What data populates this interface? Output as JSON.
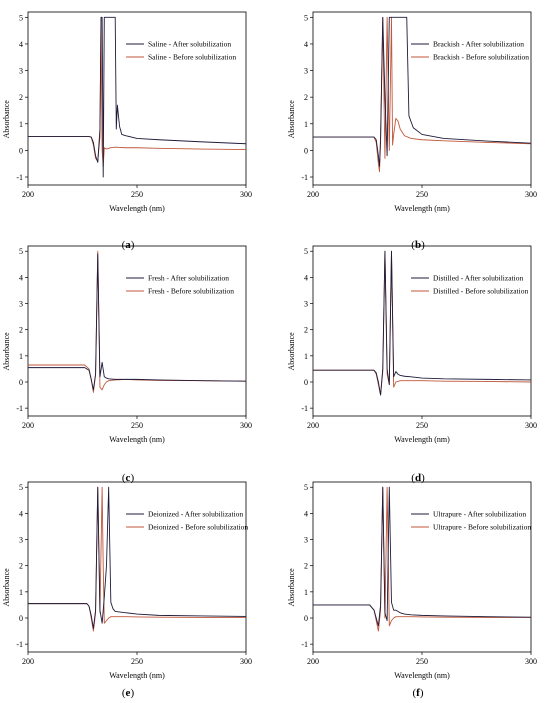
{
  "colors": {
    "after": "#1f1b3b",
    "before": "#c0573a",
    "axis": "#000000"
  },
  "chart_data": [
    {
      "type": "line",
      "panel_label": "(a)",
      "panel_letter": "a",
      "xlabel": "Wavelength (nm)",
      "ylabel": "Absorbance",
      "xlim": [
        200,
        300
      ],
      "ylim": [
        -1.3,
        5.2
      ],
      "xticks": [
        200,
        250,
        300
      ],
      "yticks": [
        -1,
        0,
        1,
        2,
        3,
        4,
        5
      ],
      "legend_position": "top-right",
      "series": [
        {
          "name": "Saline - After solubilization",
          "color": "#1f1b3b",
          "x": [
            200,
            228,
            229,
            230,
            231,
            232,
            233,
            233.5,
            234,
            234.5,
            235,
            236,
            236.5,
            237,
            238,
            238.5,
            239,
            240,
            240.5,
            241,
            242,
            243,
            245,
            250,
            260,
            280,
            300
          ],
          "y": [
            0.52,
            0.52,
            0.5,
            0.3,
            -0.2,
            -0.45,
            0.8,
            5.0,
            5.0,
            -1.0,
            5.0,
            5.0,
            5.0,
            5.0,
            5.0,
            5.0,
            5.0,
            5.0,
            0.8,
            1.7,
            0.9,
            0.6,
            0.55,
            0.45,
            0.4,
            0.32,
            0.25
          ]
        },
        {
          "name": "Saline - Before solubilization",
          "color": "#c0573a",
          "x": [
            200,
            228,
            229,
            230,
            231,
            232,
            233,
            233.5,
            234,
            234.5,
            235,
            236,
            238,
            240,
            245,
            250,
            260,
            280,
            300
          ],
          "y": [
            0.52,
            0.52,
            0.5,
            0.2,
            -0.3,
            -0.4,
            0.5,
            5.0,
            0.0,
            -0.6,
            0.1,
            0.05,
            0.1,
            0.12,
            0.1,
            0.1,
            0.08,
            0.05,
            0.03
          ]
        }
      ]
    },
    {
      "type": "line",
      "panel_label": "(b)",
      "panel_letter": "b",
      "xlabel": "Wavelength (nm)",
      "ylabel": "Absorbance",
      "xlim": [
        200,
        300
      ],
      "ylim": [
        -1.3,
        5.2
      ],
      "xticks": [
        200,
        250,
        300
      ],
      "yticks": [
        -1,
        0,
        1,
        2,
        3,
        4,
        5
      ],
      "legend_position": "top-right",
      "series": [
        {
          "name": "Brackish - After solubilization",
          "color": "#1f1b3b",
          "x": [
            200,
            228,
            229,
            230,
            230.5,
            231,
            232,
            233,
            234,
            235,
            236,
            236.5,
            237,
            238,
            240,
            242,
            243,
            244,
            246,
            250,
            260,
            280,
            300
          ],
          "y": [
            0.5,
            0.5,
            0.4,
            -0.2,
            -0.6,
            0.5,
            5.0,
            2.0,
            -0.2,
            5.0,
            5.0,
            5.0,
            5.0,
            5.0,
            5.0,
            5.0,
            5.0,
            1.3,
            0.85,
            0.6,
            0.45,
            0.35,
            0.27
          ]
        },
        {
          "name": "Brackish - Before solubilization",
          "color": "#c0573a",
          "x": [
            200,
            228,
            229,
            230,
            230.5,
            231,
            232,
            233,
            234,
            235,
            236,
            236.5,
            237,
            238,
            239,
            240,
            242,
            245,
            250,
            260,
            280,
            300
          ],
          "y": [
            0.5,
            0.5,
            0.3,
            -0.5,
            -0.8,
            0.3,
            5.0,
            -0.3,
            5.0,
            0.0,
            5.0,
            0.2,
            0.6,
            1.2,
            1.1,
            0.8,
            0.55,
            0.45,
            0.4,
            0.36,
            0.3,
            0.25
          ]
        }
      ]
    },
    {
      "type": "line",
      "panel_label": "(c)",
      "panel_letter": "c",
      "xlabel": "Wavelength (nm)",
      "ylabel": "Absorbance",
      "xlim": [
        200,
        300
      ],
      "ylim": [
        -1.3,
        5.2
      ],
      "xticks": [
        200,
        250,
        300
      ],
      "yticks": [
        -1,
        0,
        1,
        2,
        3,
        4,
        5
      ],
      "legend_position": "top-right",
      "series": [
        {
          "name": "Fresh - After solubilization",
          "color": "#1f1b3b",
          "x": [
            200,
            226,
            228,
            229,
            230,
            231,
            232,
            232.5,
            233,
            234,
            235,
            236,
            237,
            240,
            245,
            250,
            260,
            280,
            300
          ],
          "y": [
            0.55,
            0.55,
            0.45,
            0.1,
            -0.3,
            0.3,
            4.9,
            2.5,
            0.2,
            0.75,
            0.2,
            0.15,
            0.12,
            0.1,
            0.1,
            0.1,
            0.08,
            0.05,
            0.03
          ]
        },
        {
          "name": "Fresh - Before solubilization",
          "color": "#c0573a",
          "x": [
            200,
            226,
            228,
            229,
            230,
            231,
            232,
            232.5,
            233,
            234,
            235,
            236,
            237,
            240,
            245,
            250,
            260,
            280,
            300
          ],
          "y": [
            0.65,
            0.65,
            0.5,
            0.1,
            -0.4,
            0.3,
            5.0,
            2.5,
            -0.2,
            -0.3,
            -0.1,
            0.0,
            0.05,
            0.08,
            0.1,
            0.08,
            0.06,
            0.05,
            0.03
          ]
        }
      ]
    },
    {
      "type": "line",
      "panel_label": "(d)",
      "panel_letter": "d",
      "xlabel": "Wavelength (nm)",
      "ylabel": "Absorbance",
      "xlim": [
        200,
        300
      ],
      "ylim": [
        -1.3,
        5.2
      ],
      "xticks": [
        200,
        250,
        300
      ],
      "yticks": [
        -1,
        0,
        1,
        2,
        3,
        4,
        5
      ],
      "legend_position": "top-right",
      "series": [
        {
          "name": "Distilled - After solubilization",
          "color": "#1f1b3b",
          "x": [
            200,
            228,
            229,
            230,
            231,
            232,
            233,
            234,
            235,
            236,
            237,
            238,
            239,
            240,
            242,
            245,
            250,
            260,
            280,
            300
          ],
          "y": [
            0.45,
            0.45,
            0.35,
            0.0,
            -0.5,
            0.5,
            5.0,
            0.5,
            -0.1,
            5.0,
            0.2,
            0.4,
            0.3,
            0.25,
            0.22,
            0.2,
            0.15,
            0.12,
            0.1,
            0.08
          ]
        },
        {
          "name": "Distilled - Before solubilization",
          "color": "#c0573a",
          "x": [
            200,
            228,
            229,
            230,
            231,
            232,
            233,
            234,
            235,
            236,
            237,
            238,
            240,
            245,
            250,
            260,
            280,
            300
          ],
          "y": [
            0.45,
            0.45,
            0.3,
            -0.1,
            -0.5,
            0.4,
            5.0,
            0.3,
            -0.1,
            5.0,
            -0.2,
            0.0,
            0.05,
            0.05,
            0.05,
            0.03,
            0.02,
            0.0
          ]
        }
      ]
    },
    {
      "type": "line",
      "panel_label": "(e)",
      "panel_letter": "e",
      "xlabel": "Wavelength (nm)",
      "ylabel": "Absorbance",
      "xlim": [
        200,
        300
      ],
      "ylim": [
        -1.3,
        5.2
      ],
      "xticks": [
        200,
        250,
        300
      ],
      "yticks": [
        -1,
        0,
        1,
        2,
        3,
        4,
        5
      ],
      "legend_position": "top-right",
      "series": [
        {
          "name": "Deionized - After solubilization",
          "color": "#1f1b3b",
          "x": [
            200,
            227,
            228,
            229,
            230,
            231,
            232,
            233,
            234,
            235,
            236,
            237,
            238,
            239,
            240,
            245,
            250,
            260,
            280,
            300
          ],
          "y": [
            0.55,
            0.55,
            0.45,
            0.1,
            -0.4,
            0.3,
            5.0,
            0.3,
            -0.2,
            0.8,
            2.0,
            5.0,
            0.6,
            0.35,
            0.25,
            0.2,
            0.15,
            0.1,
            0.08,
            0.06
          ]
        },
        {
          "name": "Deionized - Before solubilization",
          "color": "#c0573a",
          "x": [
            200,
            227,
            228,
            229,
            230,
            231,
            232,
            233,
            234,
            234.5,
            235,
            236,
            237,
            238,
            240,
            245,
            250,
            260,
            280,
            300
          ],
          "y": [
            0.55,
            0.55,
            0.45,
            0.0,
            -0.5,
            0.2,
            5.0,
            0.2,
            5.0,
            2.0,
            -0.2,
            -0.1,
            0.0,
            0.05,
            0.05,
            0.05,
            0.04,
            0.03,
            0.02,
            0.02
          ]
        }
      ]
    },
    {
      "type": "line",
      "panel_label": "(f)",
      "panel_letter": "f",
      "xlabel": "Wavelength (nm)",
      "ylabel": "Absorbance",
      "xlim": [
        200,
        300
      ],
      "ylim": [
        -1.3,
        5.2
      ],
      "xticks": [
        200,
        250,
        300
      ],
      "yticks": [
        -1,
        0,
        1,
        2,
        3,
        4,
        5
      ],
      "legend_position": "top-right",
      "series": [
        {
          "name": "Ultrapure - After solubilization",
          "color": "#1f1b3b",
          "x": [
            200,
            226,
            228,
            229,
            230,
            231,
            232,
            233,
            234,
            235,
            236,
            237,
            238,
            240,
            242,
            245,
            250,
            260,
            280,
            300
          ],
          "y": [
            0.5,
            0.5,
            0.3,
            0.0,
            -0.3,
            0.5,
            5.0,
            0.2,
            -0.1,
            5.0,
            0.6,
            0.3,
            0.3,
            0.2,
            0.15,
            0.12,
            0.1,
            0.08,
            0.05,
            0.03
          ]
        },
        {
          "name": "Ultrapure - Before solubilization",
          "color": "#c0573a",
          "x": [
            200,
            226,
            228,
            229,
            230,
            231,
            232,
            233,
            234,
            235,
            236,
            237,
            238,
            240,
            245,
            250,
            260,
            280,
            300
          ],
          "y": [
            0.5,
            0.5,
            0.3,
            -0.1,
            -0.5,
            0.3,
            5.0,
            0.0,
            5.0,
            -0.3,
            -0.1,
            0.0,
            0.05,
            0.05,
            0.05,
            0.04,
            0.03,
            0.02,
            0.02
          ]
        }
      ]
    }
  ]
}
